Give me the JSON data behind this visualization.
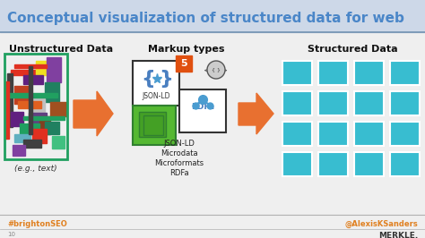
{
  "title": "Conceptual visualization of structured data for web",
  "title_color": "#4a86c8",
  "title_fontsize": 11,
  "bg_color": "#efefef",
  "header_bg": "#cdd8e8",
  "unstructured_label": "Unstructured Data",
  "markup_label": "Markup types",
  "structured_label": "Structured Data",
  "eg_label": "(e.g., text)",
  "markup_items": [
    "JSON-LD",
    "Microdata",
    "Microformats",
    "RDFa"
  ],
  "brighton_text": "#brightonSEO",
  "alexis_text": "@AlexisKSanders",
  "merkle_text": "MERKLE.",
  "arrow_color": "#e87030",
  "structured_box_color": "#38bdd0",
  "footer_line_color": "#b0b0b0",
  "footer_text_color": "#e08020",
  "alexis_color": "#e08020",
  "merkle_color": "#333333",
  "unstructured_rects": [
    [
      12,
      78,
      28,
      6,
      "#e03020",
      1.0
    ],
    [
      8,
      82,
      6,
      60,
      "#404040",
      1.0
    ],
    [
      40,
      68,
      18,
      16,
      "#f0e020",
      1.0
    ],
    [
      52,
      64,
      16,
      28,
      "#8040a0",
      1.0
    ],
    [
      26,
      84,
      22,
      10,
      "#602080",
      1.0
    ],
    [
      16,
      96,
      16,
      20,
      "#c04020",
      1.0
    ],
    [
      50,
      92,
      16,
      22,
      "#208060",
      1.0
    ],
    [
      36,
      110,
      14,
      18,
      "#c0c0c0",
      1.0
    ],
    [
      20,
      113,
      26,
      8,
      "#e06020",
      1.0
    ],
    [
      56,
      114,
      18,
      16,
      "#a05020",
      1.0
    ],
    [
      32,
      126,
      20,
      14,
      "#604080",
      1.0
    ],
    [
      12,
      125,
      14,
      16,
      "#602080",
      1.0
    ],
    [
      44,
      130,
      12,
      20,
      "#804020",
      1.0
    ],
    [
      22,
      138,
      22,
      12,
      "#20a060",
      1.0
    ],
    [
      50,
      136,
      16,
      14,
      "#208060",
      1.0
    ],
    [
      16,
      150,
      18,
      9,
      "#60b0c0",
      1.0
    ],
    [
      36,
      144,
      16,
      16,
      "#e03020",
      1.0
    ],
    [
      58,
      152,
      14,
      14,
      "#40c080",
      1.0
    ],
    [
      26,
      156,
      20,
      9,
      "#404040",
      1.0
    ],
    [
      14,
      162,
      14,
      12,
      "#8040a0",
      1.0
    ],
    [
      16,
      72,
      36,
      4,
      "#e03020",
      1.0
    ],
    [
      8,
      104,
      56,
      5,
      "#20a060",
      1.0
    ],
    [
      26,
      130,
      46,
      4,
      "#20a060",
      1.0
    ],
    [
      32,
      74,
      4,
      76,
      "#404040",
      1.0
    ],
    [
      6,
      91,
      4,
      64,
      "#e03020",
      1.0
    ]
  ]
}
